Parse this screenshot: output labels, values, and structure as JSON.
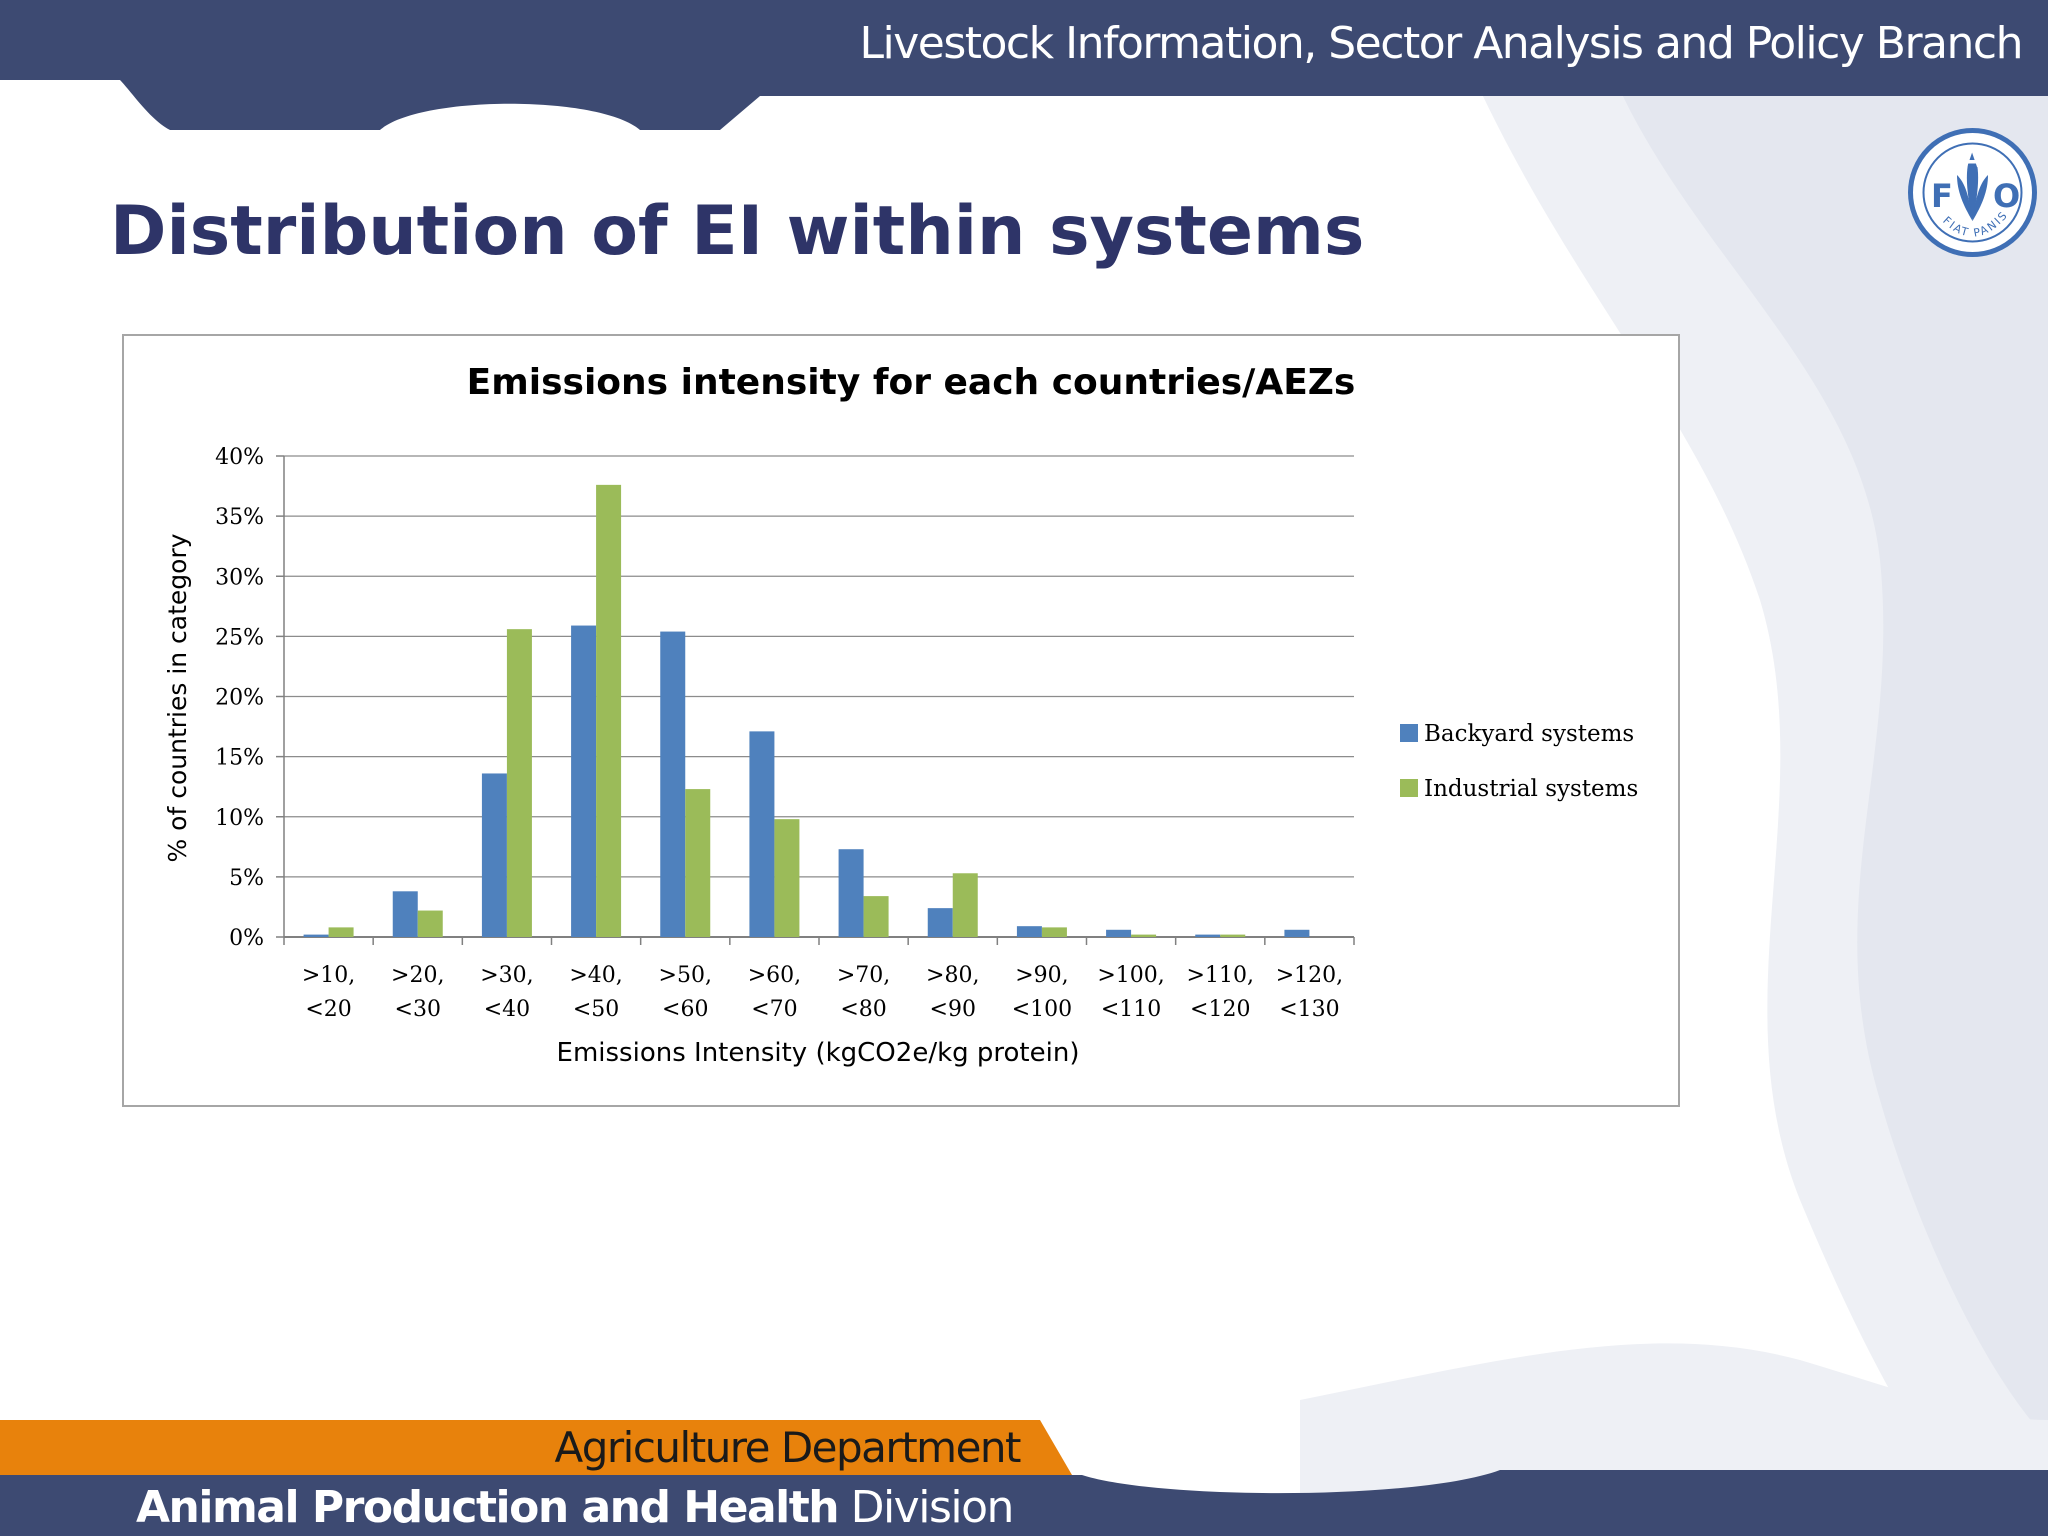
{
  "header": {
    "branch": "Livestock Information, Sector Analysis and Policy Branch"
  },
  "logo": {
    "icon": "fao-logo-icon",
    "letters": [
      "F",
      "A",
      "O"
    ],
    "motto": "FIAT PANIS"
  },
  "slide": {
    "title": "Distribution of EI within systems"
  },
  "footer": {
    "department": "Agriculture Department",
    "division_bold": "Animal Production and Health",
    "division_rest": " Division"
  },
  "colors": {
    "navy": "#3d4a72",
    "orange": "#e8820c",
    "title": "#2e3468",
    "backyard": "#4f81bd",
    "industrial": "#9bbb59"
  },
  "chart_data": {
    "type": "bar",
    "title": "Emissions intensity for each countries/AEZs",
    "xlabel": "Emissions Intensity (kgCO2e/kg protein)",
    "ylabel": "% of countries in category",
    "ylim": [
      0,
      40
    ],
    "yticks": [
      "0%",
      "5%",
      "10%",
      "15%",
      "20%",
      "25%",
      "30%",
      "35%",
      "40%"
    ],
    "grid": true,
    "legend_position": "right",
    "categories": [
      [
        ">10,",
        "<20"
      ],
      [
        ">20,",
        "<30"
      ],
      [
        ">30,",
        "<40"
      ],
      [
        ">40,",
        "<50"
      ],
      [
        ">50,",
        "<60"
      ],
      [
        ">60,",
        "<70"
      ],
      [
        ">70,",
        "<80"
      ],
      [
        ">80,",
        "<90"
      ],
      [
        ">90,",
        "<100"
      ],
      [
        ">100,",
        "<110"
      ],
      [
        ">110,",
        "<120"
      ],
      [
        ">120,",
        "<130"
      ]
    ],
    "series": [
      {
        "name": "Backyard systems",
        "color": "#4f81bd",
        "values": [
          0.2,
          3.8,
          13.6,
          25.9,
          25.4,
          17.1,
          7.3,
          2.4,
          0.9,
          0.6,
          0.2,
          0.6
        ]
      },
      {
        "name": "Industrial systems",
        "color": "#9bbb59",
        "values": [
          0.8,
          2.2,
          25.6,
          37.6,
          12.3,
          9.8,
          3.4,
          5.3,
          0.8,
          0.2,
          0.2,
          0.0
        ]
      }
    ]
  }
}
